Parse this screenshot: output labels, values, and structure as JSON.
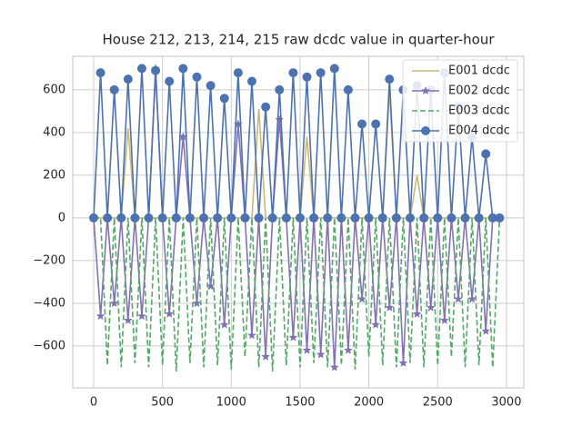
{
  "chart_data": {
    "type": "line",
    "title": "House 212, 213, 214, 215 raw dcdc value in quarter-hour",
    "x": [
      0,
      50,
      100,
      150,
      200,
      250,
      300,
      350,
      400,
      450,
      500,
      550,
      600,
      650,
      700,
      750,
      800,
      850,
      900,
      950,
      1000,
      1050,
      1100,
      1150,
      1200,
      1250,
      1300,
      1350,
      1400,
      1450,
      1500,
      1550,
      1600,
      1650,
      1700,
      1750,
      1800,
      1850,
      1900,
      1950,
      2000,
      2050,
      2100,
      2150,
      2200,
      2250,
      2300,
      2350,
      2400,
      2450,
      2500,
      2550,
      2600,
      2650,
      2700,
      2750,
      2800,
      2850,
      2900,
      2950
    ],
    "series": [
      {
        "name": "E001 dcdc",
        "color": "#ccb974",
        "linestyle": "solid",
        "marker": null,
        "values": [
          0,
          0,
          0,
          0,
          0,
          420,
          0,
          0,
          0,
          0,
          0,
          0,
          0,
          0,
          0,
          0,
          0,
          0,
          0,
          0,
          0,
          0,
          0,
          0,
          510,
          0,
          0,
          0,
          0,
          0,
          0,
          380,
          0,
          0,
          0,
          0,
          0,
          0,
          0,
          0,
          0,
          0,
          0,
          600,
          0,
          0,
          0,
          200,
          0,
          0,
          0,
          0,
          0,
          0,
          0,
          0,
          0,
          0,
          0,
          0
        ]
      },
      {
        "name": "E002 dcdc",
        "color": "#8172b2",
        "linestyle": "solid",
        "marker": "star",
        "values": [
          0,
          -460,
          0,
          -400,
          0,
          -480,
          0,
          -460,
          0,
          700,
          0,
          -450,
          0,
          380,
          0,
          -400,
          0,
          -320,
          0,
          -500,
          0,
          440,
          0,
          -550,
          0,
          -650,
          0,
          460,
          0,
          -560,
          0,
          -620,
          0,
          -640,
          0,
          -700,
          0,
          -620,
          0,
          -380,
          0,
          -500,
          0,
          -420,
          0,
          -680,
          0,
          -450,
          0,
          -420,
          0,
          -480,
          0,
          -380,
          0,
          -380,
          0,
          -530,
          0,
          0
        ]
      },
      {
        "name": "E003 dcdc",
        "color": "#55a868",
        "linestyle": "dashed",
        "marker": null,
        "values": [
          0,
          0,
          -690,
          0,
          -700,
          0,
          -680,
          0,
          -700,
          0,
          -690,
          0,
          -720,
          0,
          -680,
          0,
          -700,
          0,
          -690,
          0,
          -710,
          0,
          -650,
          0,
          -700,
          0,
          -720,
          0,
          -690,
          0,
          -700,
          0,
          -680,
          0,
          -700,
          0,
          -690,
          0,
          -710,
          0,
          -650,
          0,
          -690,
          0,
          -700,
          0,
          -680,
          0,
          -700,
          0,
          -690,
          0,
          -650,
          0,
          -700,
          0,
          -690,
          0,
          -700,
          0
        ]
      },
      {
        "name": "E004 dcdc",
        "color": "#4c72b0",
        "linestyle": "solid",
        "marker": "circle",
        "values": [
          0,
          680,
          0,
          600,
          0,
          650,
          0,
          700,
          0,
          690,
          0,
          640,
          0,
          700,
          0,
          660,
          0,
          620,
          0,
          560,
          0,
          680,
          0,
          640,
          0,
          520,
          0,
          600,
          0,
          680,
          0,
          660,
          0,
          680,
          0,
          700,
          0,
          600,
          0,
          440,
          0,
          440,
          0,
          650,
          0,
          600,
          0,
          620,
          0,
          600,
          0,
          680,
          0,
          520,
          0,
          380,
          0,
          300,
          0,
          0
        ]
      }
    ],
    "xlim": [
      -152,
      3126
    ],
    "ylim": [
      -796,
      757
    ],
    "xticks": [
      0,
      500,
      1000,
      1500,
      2000,
      2500,
      3000
    ],
    "yticks": [
      {
        "value": -600,
        "label": "−600"
      },
      {
        "value": -400,
        "label": "−400"
      },
      {
        "value": -200,
        "label": "−200"
      },
      0,
      200,
      400,
      600
    ],
    "grid": true,
    "legend": "upper right"
  }
}
